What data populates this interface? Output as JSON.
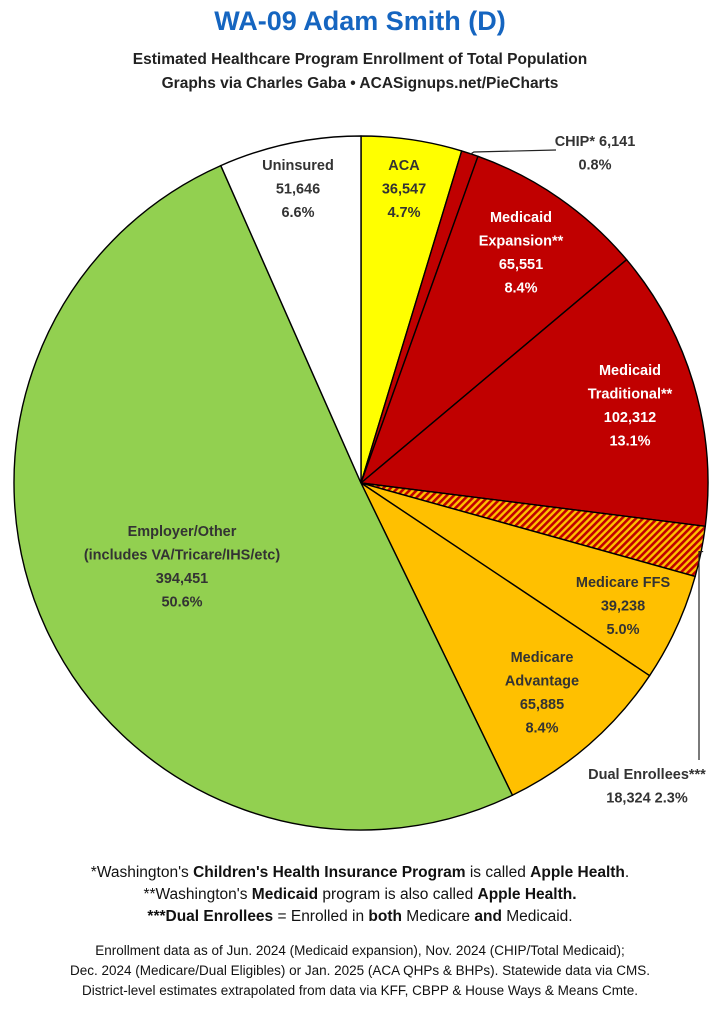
{
  "header": {
    "title": "WA-09 Adam Smith (D)",
    "subtitle1": "Estimated Healthcare Program Enrollment of Total Population",
    "subtitle2": "Graphs via Charles Gaba  •  ACASignups.net/PieCharts"
  },
  "chart_data": {
    "type": "pie",
    "start": "12 o'clock, clockwise",
    "slices": [
      {
        "label": "ACA",
        "value": 36547,
        "pct": "4.7%",
        "value_text": "36,547",
        "color": "#ffff00",
        "label_color": "#333333"
      },
      {
        "label": "CHIP*",
        "value": 6141,
        "pct": "0.8%",
        "value_text": "6,141",
        "color": "#c00000",
        "label_color": "#333333"
      },
      {
        "label": "Medicaid Expansion**",
        "value": 65551,
        "pct": "8.4%",
        "value_text": "65,551",
        "color": "#c00000",
        "label_color": "#ffffff"
      },
      {
        "label": "Medicaid Traditional**",
        "value": 102312,
        "pct": "13.1%",
        "value_text": "102,312",
        "color": "#c00000",
        "label_color": "#ffffff"
      },
      {
        "label": "Dual Enrollees***",
        "value": 18324,
        "pct": "2.3%",
        "value_text": "18,324",
        "color": "#c00000",
        "label_color": "#333333",
        "pattern": "hatched red/orange"
      },
      {
        "label": "Medicare FFS",
        "value": 39238,
        "pct": "5.0%",
        "value_text": "39,238",
        "color": "#ffc000",
        "label_color": "#333333"
      },
      {
        "label": "Medicare Advantage",
        "value": 65885,
        "pct": "8.4%",
        "value_text": "65,885",
        "color": "#ffc000",
        "label_color": "#333333"
      },
      {
        "label": "Employer/Other (includes VA/Tricare/IHS/etc)",
        "value": 394451,
        "pct": "50.6%",
        "value_text": "394,451",
        "color": "#92d050",
        "label_color": "#333333"
      },
      {
        "label": "Uninsured",
        "value": 51646,
        "pct": "6.6%",
        "value_text": "51,646",
        "color": "#ffffff",
        "label_color": "#333333"
      }
    ],
    "labels": {
      "aca": [
        "ACA",
        "36,547",
        "4.7%"
      ],
      "chip": [
        "CHIP* 6,141",
        "0.8%"
      ],
      "medicaid_expansion": [
        "Medicaid",
        "Expansion**",
        "65,551",
        "8.4%"
      ],
      "medicaid_traditional": [
        "Medicaid",
        "Traditional**",
        "102,312",
        "13.1%"
      ],
      "dual": [
        "Dual Enrollees***",
        "18,324 2.3%"
      ],
      "medicare_ffs": [
        "Medicare FFS",
        "39,238",
        "5.0%"
      ],
      "medicare_advantage": [
        "Medicare",
        "Advantage",
        "65,885",
        "8.4%"
      ],
      "employer": [
        "Employer/Other",
        "(includes VA/Tricare/IHS/etc)",
        "394,451",
        "50.6%"
      ],
      "uninsured": [
        "Uninsured",
        "51,646",
        "6.6%"
      ]
    }
  },
  "notes": {
    "n1": [
      "*Washington's ",
      "Children's Health Insurance Program",
      " is called ",
      "Apple Health",
      "."
    ],
    "n2": [
      "**Washington's ",
      "Medicaid",
      " program is also called ",
      "Apple Health."
    ],
    "n3": [
      "***Dual Enrollees",
      " = Enrolled in ",
      "both",
      " Medicare ",
      "and",
      " Medicaid."
    ]
  },
  "footer": {
    "f1": "Enrollment data as of Jun. 2024 (Medicaid expansion), Nov. 2024 (CHIP/Total Medicaid);",
    "f2": "Dec. 2024 (Medicare/Dual Eligibles) or Jan. 2025 (ACA QHPs & BHPs). Statewide data via CMS.",
    "f3": "District-level estimates extrapolated from data via KFF, CBPP & House Ways & Means Cmte."
  }
}
